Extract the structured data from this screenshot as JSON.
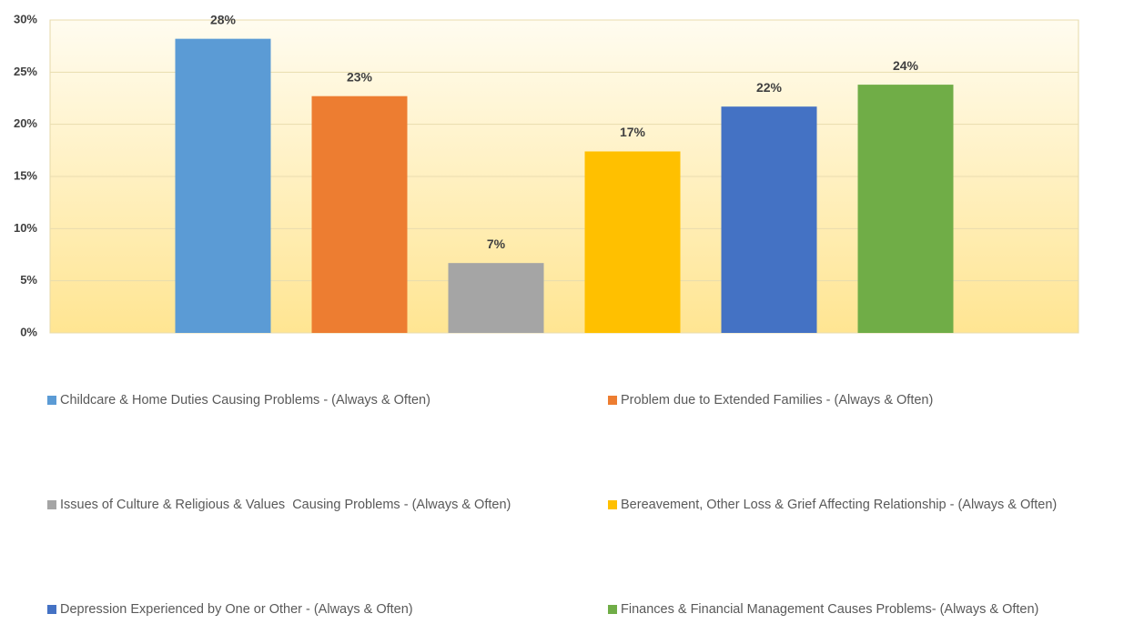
{
  "chart_data": {
    "type": "bar",
    "categories": [
      null
    ],
    "series": [
      {
        "name": "Childcare & Home Duties Causing Problems - (Always & Often)",
        "color": "#5b9bd5",
        "values": [
          28.2
        ],
        "value_labels": [
          "28%"
        ]
      },
      {
        "name": "Problem due to Extended Families - (Always & Often)",
        "color": "#ed7d31",
        "values": [
          22.7
        ],
        "value_labels": [
          "23%"
        ]
      },
      {
        "name": "Issues of Culture & Religious & Values  Causing Problems - (Always & Often)",
        "color": "#a5a5a5",
        "values": [
          6.7
        ],
        "value_labels": [
          "7%"
        ]
      },
      {
        "name": "Bereavement, Other Loss & Grief Affecting Relationship - (Always & Often)",
        "color": "#ffc000",
        "values": [
          17.4
        ],
        "value_labels": [
          "17%"
        ]
      },
      {
        "name": "Depression Experienced by One or Other - (Always & Often)",
        "color": "#4472c4",
        "values": [
          21.7
        ],
        "value_labels": [
          "22%"
        ]
      },
      {
        "name": "Finances & Financial Management Causes Problems- (Always & Often)",
        "color": "#70ad47",
        "values": [
          23.8
        ],
        "value_labels": [
          "24%"
        ]
      }
    ],
    "ylim": [
      0,
      30
    ],
    "yticks": [
      {
        "value": 0,
        "label": "0%"
      },
      {
        "value": 5,
        "label": "5%"
      },
      {
        "value": 10,
        "label": "10%"
      },
      {
        "value": 15,
        "label": "15%"
      },
      {
        "value": 20,
        "label": "20%"
      },
      {
        "value": 25,
        "label": "25%"
      },
      {
        "value": 30,
        "label": "30%"
      }
    ],
    "grid": true,
    "legend": "bottom"
  }
}
